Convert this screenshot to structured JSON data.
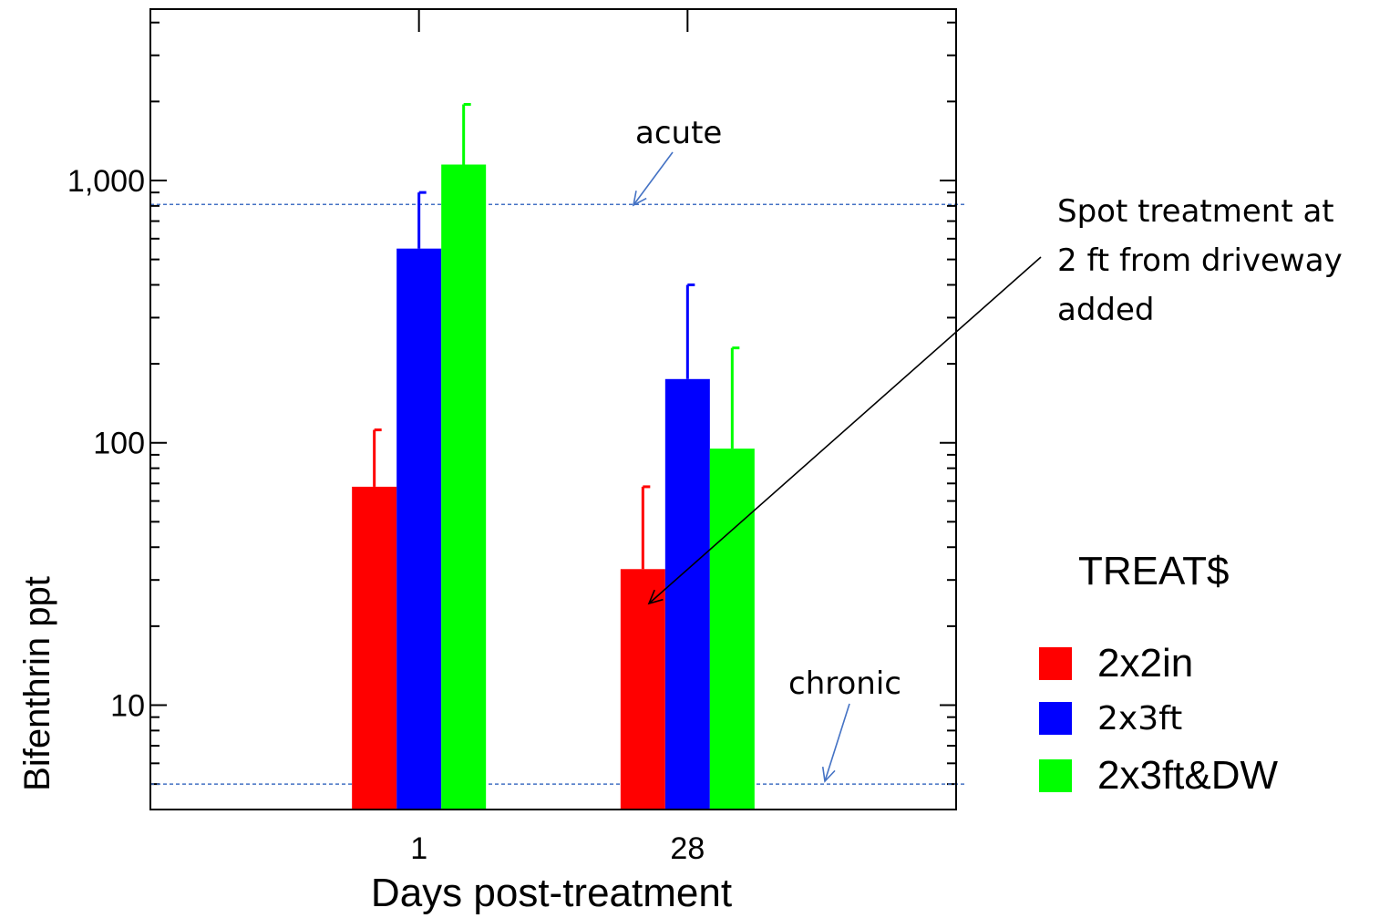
{
  "chart_data": {
    "type": "bar",
    "xlabel": "Days post-treatment",
    "ylabel": "Bifenthrin ppt",
    "yscale": "log",
    "ylim": [
      4,
      4500
    ],
    "yticks": [
      {
        "value": 10,
        "label": "10"
      },
      {
        "value": 100,
        "label": "100"
      },
      {
        "value": 1000,
        "label": "1,000"
      }
    ],
    "categories": [
      "1",
      "28"
    ],
    "series": [
      {
        "name": "2x2in",
        "color": "#ff0000",
        "values": [
          68,
          33
        ],
        "error_upper": [
          112,
          68
        ]
      },
      {
        "name": "2x3ft",
        "color": "#0000ff",
        "values": [
          550,
          175
        ],
        "error_upper": [
          900,
          400
        ]
      },
      {
        "name": "2x3ft&DW",
        "color": "#00ff00",
        "values": [
          1150,
          95
        ],
        "error_upper": [
          1950,
          230
        ]
      }
    ],
    "reference_lines": [
      {
        "label": "acute",
        "value": 810,
        "color": "#4472c4"
      },
      {
        "label": "chronic",
        "value": 5,
        "color": "#4472c4"
      }
    ],
    "annotations": [
      {
        "lines": [
          "Spot treatment at",
          "2 ft from driveway",
          "added"
        ]
      }
    ],
    "legend": {
      "title": "TREAT$",
      "position": "right"
    }
  }
}
